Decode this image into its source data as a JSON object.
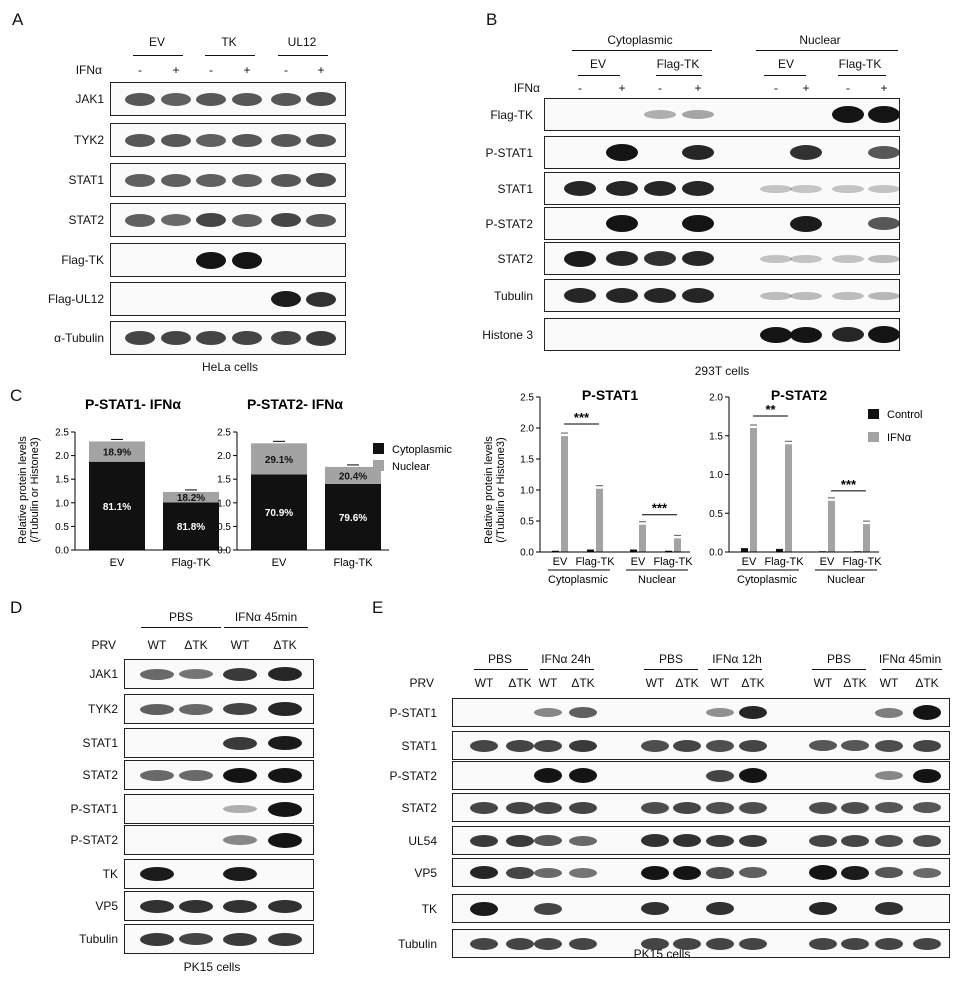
{
  "panels": {
    "A": {
      "letter": "A",
      "groups": [
        "EV",
        "TK",
        "UL12"
      ],
      "ifn_label": "IFNα",
      "treat": [
        "-",
        "+",
        "-",
        "+",
        "-",
        "+"
      ],
      "blots": [
        "JAK1",
        "TYK2",
        "STAT1",
        "STAT2",
        "Flag-TK",
        "Flag-UL12",
        "α-Tubulin"
      ],
      "caption": "HeLa cells"
    },
    "B": {
      "letter": "B",
      "fractions": [
        "Cytoplasmic",
        "Nuclear"
      ],
      "groups": [
        "EV",
        "Flag-TK",
        "EV",
        "Flag-TK"
      ],
      "ifn_label": "IFNα",
      "treat": [
        "-",
        "+",
        "-",
        "+",
        "-",
        "+",
        "-",
        "+"
      ],
      "blots": [
        "Flag-TK",
        "P-STAT1",
        "STAT1",
        "P-STAT2",
        "STAT2",
        "Tubulin",
        "Histone 3"
      ],
      "caption": "293T  cells"
    },
    "C": {
      "letter": "C",
      "legend": [
        "Cytoplasmic",
        "Nuclear"
      ],
      "bar_legend": [
        "Control",
        "IFNα"
      ],
      "ylabel_lines": [
        "Relative protein levels",
        "(/Tubulin or Histone3)"
      ],
      "fraction_labels": [
        "Cytoplasmic",
        "Nuclear"
      ],
      "group_labels": [
        "EV",
        "Flag-TK",
        "EV",
        "Flag-TK"
      ]
    },
    "D": {
      "letter": "D",
      "treat_groups": [
        "PBS",
        "IFNα 45min"
      ],
      "prv_label": "PRV",
      "strains": [
        "WT",
        "ΔTK",
        "WT",
        "ΔTK"
      ],
      "blots": [
        "JAK1",
        "TYK2",
        "STAT1",
        "STAT2",
        "P-STAT1",
        "P-STAT2",
        "TK",
        "VP5",
        "Tubulin"
      ],
      "caption": "PK15  cells"
    },
    "E": {
      "letter": "E",
      "treat_groups": [
        "PBS",
        "IFNα 24h",
        "PBS",
        "IFNα 12h",
        "PBS",
        "IFNα 45min"
      ],
      "prv_label": "PRV",
      "strains": [
        "WT",
        "ΔTK",
        "WT",
        "ΔTK",
        "WT",
        "ΔTK",
        "WT",
        "ΔTK",
        "WT",
        "ΔTK",
        "WT",
        "ΔTK"
      ],
      "blots": [
        "P-STAT1",
        "STAT1",
        "P-STAT2",
        "STAT2",
        "UL54",
        "VP5",
        "TK",
        "Tubulin"
      ],
      "caption": "PK15  cells"
    }
  },
  "chart_data": [
    {
      "type": "bar",
      "title": "P-STAT1- IFNα",
      "xlabel": "",
      "ylabel": "Relative protein levels (/Tubulin or Histone3)",
      "categories": [
        "EV",
        "Flag-TK"
      ],
      "stacked": true,
      "series": [
        {
          "name": "Cytoplasmic",
          "values": [
            1.87,
            1.01
          ],
          "labels": [
            "81.1%",
            "81.8%"
          ]
        },
        {
          "name": "Nuclear",
          "values": [
            0.43,
            0.22
          ],
          "labels": [
            "18.9%",
            "18.2%"
          ]
        }
      ],
      "ylim": [
        0,
        2.5
      ],
      "yticks": [
        "0.0",
        "0.5",
        "1.0",
        "1.5",
        "2.0",
        "2.5"
      ]
    },
    {
      "type": "bar",
      "title": "P-STAT2- IFNα",
      "xlabel": "",
      "ylabel": "",
      "categories": [
        "EV",
        "Flag-TK"
      ],
      "stacked": true,
      "series": [
        {
          "name": "Cytoplasmic",
          "values": [
            1.6,
            1.4
          ],
          "labels": [
            "70.9%",
            "79.6%"
          ]
        },
        {
          "name": "Nuclear",
          "values": [
            0.66,
            0.36
          ],
          "labels": [
            "29.1%",
            "20.4%"
          ]
        }
      ],
      "ylim": [
        0,
        2.5
      ],
      "yticks": [
        "0.0",
        "0.5",
        "1.0",
        "1.5",
        "2.0",
        "2.5"
      ],
      "legend": "right"
    },
    {
      "type": "bar",
      "title": "P-STAT1",
      "xlabel": "",
      "ylabel": "Relative protein levels (/Tubulin or Histone3)",
      "categories": [
        "EV",
        "Flag-TK",
        "EV",
        "Flag-TK"
      ],
      "series": [
        {
          "name": "Control",
          "values": [
            0.02,
            0.04,
            0.04,
            0.02
          ]
        },
        {
          "name": "IFNα",
          "values": [
            1.87,
            1.02,
            0.44,
            0.22
          ]
        }
      ],
      "significance": [
        "***",
        "***"
      ],
      "ylim": [
        0,
        2.5
      ],
      "yticks": [
        "0.0",
        "0.5",
        "1.0",
        "1.5",
        "2.0",
        "2.5"
      ]
    },
    {
      "type": "bar",
      "title": "P-STAT2",
      "xlabel": "",
      "ylabel": "",
      "categories": [
        "EV",
        "Flag-TK",
        "EV",
        "Flag-TK"
      ],
      "series": [
        {
          "name": "Control",
          "values": [
            0.05,
            0.04,
            0.01,
            0.01
          ]
        },
        {
          "name": "IFNα",
          "values": [
            1.6,
            1.39,
            0.66,
            0.36
          ]
        }
      ],
      "significance": [
        "**",
        "***"
      ],
      "ylim": [
        0,
        2.0
      ],
      "yticks": [
        "0.0",
        "0.5",
        "1.0",
        "1.5",
        "2.0"
      ],
      "legend": "right"
    }
  ],
  "blot_data": {
    "A": [
      [
        0.6,
        0.55,
        0.6,
        0.6,
        0.6,
        0.65
      ],
      [
        0.6,
        0.6,
        0.55,
        0.6,
        0.6,
        0.62
      ],
      [
        0.55,
        0.55,
        0.55,
        0.55,
        0.6,
        0.65
      ],
      [
        0.55,
        0.5,
        0.7,
        0.55,
        0.7,
        0.6
      ],
      [
        0,
        0,
        1,
        1,
        0,
        0
      ],
      [
        0,
        0,
        0,
        0,
        0.9,
        0.8
      ],
      [
        0.7,
        0.7,
        0.7,
        0.7,
        0.7,
        0.75
      ]
    ],
    "B": [
      [
        0,
        0,
        0.15,
        0.2,
        0,
        0,
        1,
        1
      ],
      [
        0,
        1,
        0,
        0.85,
        0,
        0.8,
        0,
        0.6
      ],
      [
        0.85,
        0.85,
        0.85,
        0.85,
        0.05,
        0.03,
        0.05,
        0.05
      ],
      [
        0,
        1,
        0,
        1,
        0,
        0.9,
        0,
        0.6
      ],
      [
        0.9,
        0.85,
        0.8,
        0.85,
        0.05,
        0.05,
        0.05,
        0.08
      ],
      [
        0.85,
        0.85,
        0.85,
        0.85,
        0.08,
        0.08,
        0.08,
        0.1
      ],
      [
        0,
        0,
        0,
        0,
        0.95,
        0.95,
        0.85,
        1
      ]
    ],
    "D": [
      [
        0.5,
        0.45,
        0.75,
        0.85
      ],
      [
        0.55,
        0.5,
        0.7,
        0.85
      ],
      [
        0,
        0,
        0.75,
        0.9
      ],
      [
        0.5,
        0.5,
        0.95,
        1
      ],
      [
        0,
        0,
        0.15,
        0.95
      ],
      [
        0,
        0,
        0.35,
        0.95
      ],
      [
        0.9,
        0,
        0.9,
        0
      ],
      [
        0.8,
        0.8,
        0.8,
        0.8
      ],
      [
        0.75,
        0.7,
        0.75,
        0.75
      ]
    ],
    "E": [
      [
        0,
        0,
        0.35,
        0.55,
        0,
        0,
        0.3,
        0.85,
        0,
        0,
        0.4,
        1
      ],
      [
        0.7,
        0.7,
        0.7,
        0.75,
        0.65,
        0.7,
        0.65,
        0.7,
        0.6,
        0.6,
        0.65,
        0.7
      ],
      [
        0,
        0,
        1,
        1,
        0,
        0,
        0.7,
        1,
        0,
        0,
        0.35,
        0.95
      ],
      [
        0.7,
        0.7,
        0.7,
        0.7,
        0.65,
        0.7,
        0.65,
        0.65,
        0.65,
        0.65,
        0.6,
        0.6
      ],
      [
        0.75,
        0.75,
        0.6,
        0.5,
        0.8,
        0.8,
        0.75,
        0.75,
        0.7,
        0.7,
        0.65,
        0.65
      ],
      [
        0.85,
        0.7,
        0.5,
        0.45,
        0.95,
        0.95,
        0.65,
        0.55,
        1,
        0.9,
        0.6,
        0.5
      ],
      [
        0.9,
        0,
        0.7,
        0,
        0.8,
        0,
        0.8,
        0,
        0.85,
        0,
        0.8,
        0
      ],
      [
        0.7,
        0.7,
        0.7,
        0.7,
        0.7,
        0.7,
        0.7,
        0.7,
        0.7,
        0.7,
        0.7,
        0.7
      ]
    ]
  }
}
